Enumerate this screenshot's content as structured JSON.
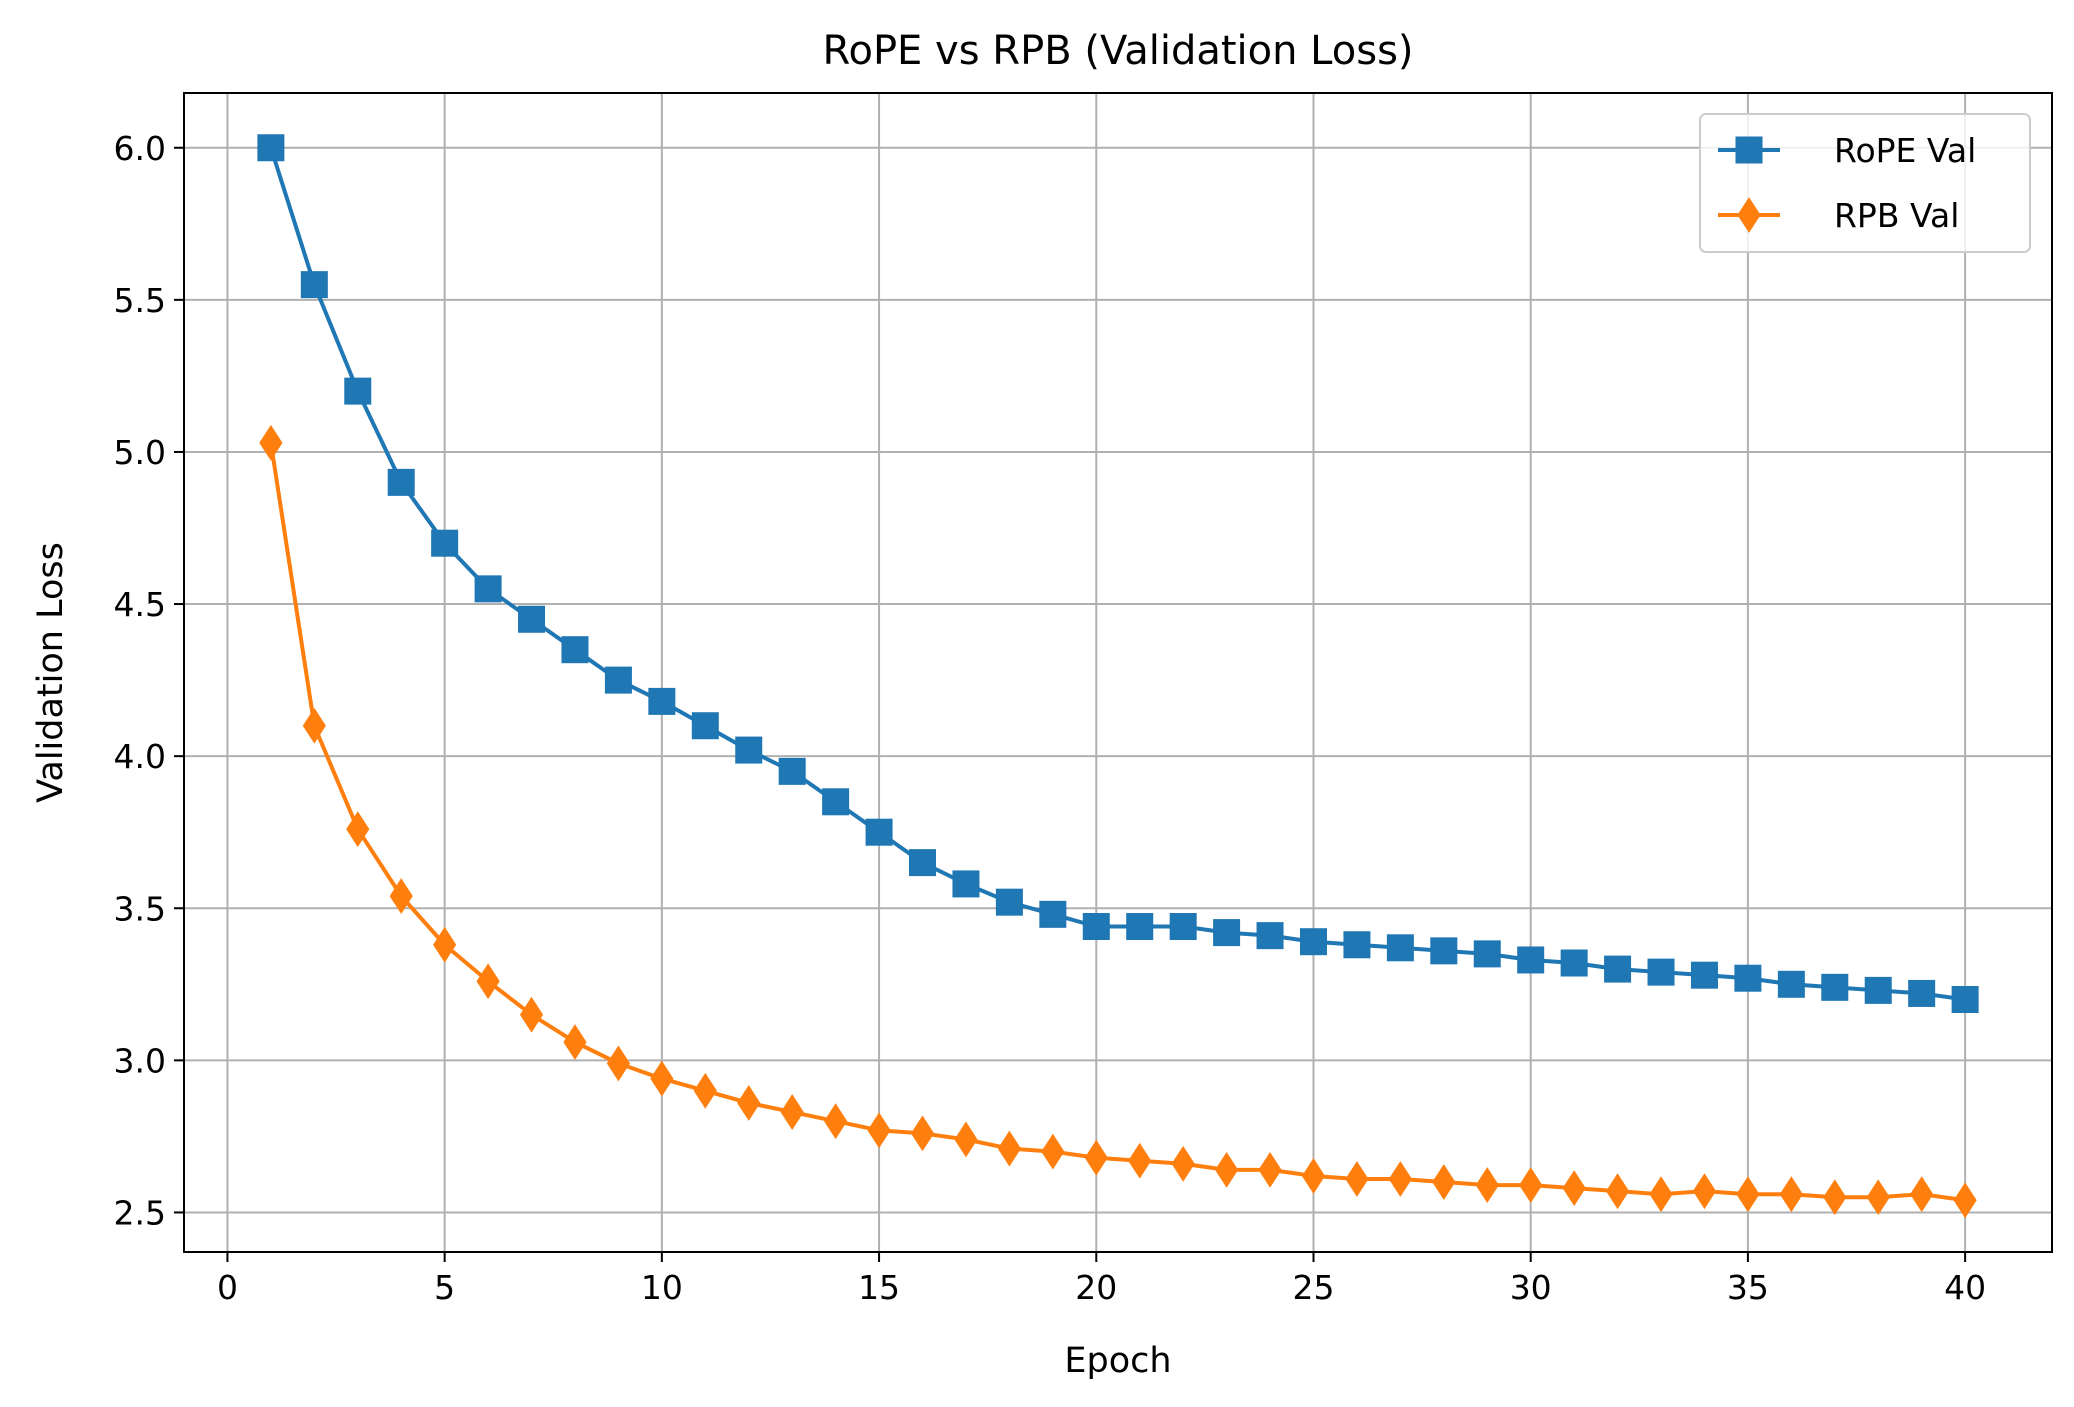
{
  "chart_data": {
    "type": "line",
    "title": "RoPE vs RPB (Validation Loss)",
    "xlabel": "Epoch",
    "ylabel": "Validation Loss",
    "xlim": [
      -1,
      42
    ],
    "ylim": [
      2.37,
      6.18
    ],
    "xticks": [
      0,
      5,
      10,
      15,
      20,
      25,
      30,
      35,
      40
    ],
    "yticks": [
      2.5,
      3.0,
      3.5,
      4.0,
      4.5,
      5.0,
      5.5,
      6.0
    ],
    "xtick_labels": [
      "0",
      "5",
      "10",
      "15",
      "20",
      "25",
      "30",
      "35",
      "40"
    ],
    "ytick_labels": [
      "2.5",
      "3.0",
      "3.5",
      "4.0",
      "4.5",
      "5.0",
      "5.5",
      "6.0"
    ],
    "grid": true,
    "legend_position": "top-right",
    "x": [
      1,
      2,
      3,
      4,
      5,
      6,
      7,
      8,
      9,
      10,
      11,
      12,
      13,
      14,
      15,
      16,
      17,
      18,
      19,
      20,
      21,
      22,
      23,
      24,
      25,
      26,
      27,
      28,
      29,
      30,
      31,
      32,
      33,
      34,
      35,
      36,
      37,
      38,
      39,
      40
    ],
    "series": [
      {
        "name": "RoPE Val",
        "color": "#1f77b4",
        "marker": "square",
        "values": [
          6.0,
          5.55,
          5.2,
          4.9,
          4.7,
          4.55,
          4.45,
          4.35,
          4.25,
          4.18,
          4.1,
          4.02,
          3.95,
          3.85,
          3.75,
          3.65,
          3.58,
          3.52,
          3.48,
          3.44,
          3.44,
          3.44,
          3.42,
          3.41,
          3.39,
          3.38,
          3.37,
          3.36,
          3.35,
          3.33,
          3.32,
          3.3,
          3.29,
          3.28,
          3.27,
          3.25,
          3.24,
          3.23,
          3.22,
          3.2
        ]
      },
      {
        "name": "RPB Val",
        "color": "#ff7f0e",
        "marker": "diamond",
        "values": [
          5.03,
          4.1,
          3.76,
          3.54,
          3.38,
          3.26,
          3.15,
          3.06,
          2.99,
          2.94,
          2.9,
          2.86,
          2.83,
          2.8,
          2.77,
          2.76,
          2.74,
          2.71,
          2.7,
          2.68,
          2.67,
          2.66,
          2.64,
          2.64,
          2.62,
          2.61,
          2.61,
          2.6,
          2.59,
          2.59,
          2.58,
          2.57,
          2.56,
          2.57,
          2.56,
          2.56,
          2.55,
          2.55,
          2.56,
          2.54
        ]
      }
    ]
  }
}
